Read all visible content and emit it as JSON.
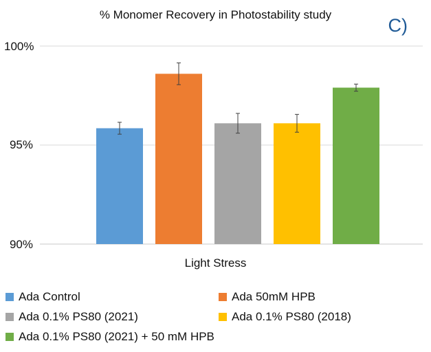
{
  "chart_data": {
    "type": "bar",
    "title": "% Monomer Recovery in Photostability study",
    "panel_label": "C)",
    "xlabel": "Light Stress",
    "ylabel": "",
    "ylim": [
      90,
      100
    ],
    "yticks": [
      "90%",
      "95%",
      "100%"
    ],
    "ytick_values": [
      90,
      95,
      100
    ],
    "grid": true,
    "legend_position": "bottom",
    "categories": [
      "Light Stress"
    ],
    "series": [
      {
        "name": "Ada Control",
        "values": [
          95.85
        ],
        "error": [
          0.3
        ],
        "color": "#5b9bd5"
      },
      {
        "name": "Ada 50mM HPB",
        "values": [
          98.6
        ],
        "error": [
          0.55
        ],
        "color": "#ed7d31"
      },
      {
        "name": "Ada 0.1% PS80 (2021)",
        "values": [
          96.1
        ],
        "error": [
          0.5
        ],
        "color": "#a5a5a5"
      },
      {
        "name": "Ada 0.1% PS80 (2018)",
        "values": [
          96.1
        ],
        "error": [
          0.45
        ],
        "color": "#ffc000"
      },
      {
        "name": "Ada 0.1% PS80 (2021) + 50 mM HPB",
        "values": [
          97.9
        ],
        "error": [
          0.18
        ],
        "color": "#70ad47"
      }
    ]
  }
}
